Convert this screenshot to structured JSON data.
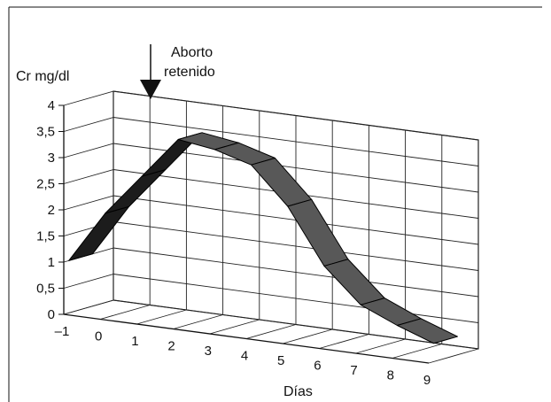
{
  "chart_data": {
    "type": "area",
    "view": "3d-ribbon",
    "ylabel": "Cr  mg/dl",
    "xlabel": "Días",
    "x_ticks": [
      "–1",
      "0",
      "1",
      "2",
      "3",
      "4",
      "5",
      "6",
      "7",
      "8",
      "9"
    ],
    "y_ticks": [
      "0",
      "0,5",
      "1",
      "1,5",
      "2",
      "2,5",
      "3",
      "3,5",
      "4"
    ],
    "ylim": [
      0,
      4
    ],
    "xlim": [
      -1,
      9
    ],
    "x": [
      -1,
      0,
      1,
      2,
      3,
      4,
      5,
      6,
      7,
      8,
      9
    ],
    "values": [
      1.0,
      2.0,
      2.8,
      3.6,
      3.5,
      3.3,
      2.6,
      1.55,
      0.9,
      0.6,
      0.35
    ],
    "grid": true,
    "annotation": {
      "line1": "Aborto",
      "line2": "retenido",
      "x": 0.5
    },
    "colors": {
      "ribbon_dark": "#1c1c1c",
      "ribbon_mid": "#585858",
      "grid": "#222222"
    }
  }
}
